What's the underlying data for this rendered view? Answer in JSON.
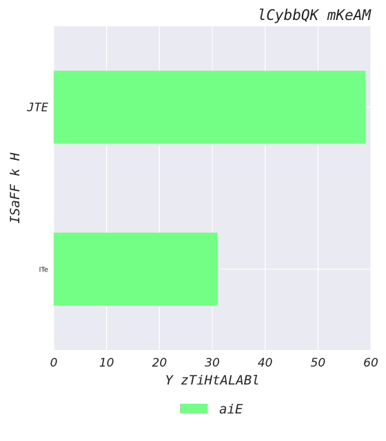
{
  "chart_data": {
    "type": "bar",
    "orientation": "horizontal",
    "title": "lCybbQK mKeAM",
    "xlabel": "Y zTiHtALABl",
    "ylabel": "ISaFF k H",
    "categories": [
      "JTE",
      "ITe"
    ],
    "series": [
      {
        "name": "aiE",
        "values": [
          59,
          31
        ],
        "color": "#73ff85"
      }
    ],
    "xlim": [
      0,
      60
    ],
    "xticks": [
      0,
      10,
      20,
      30,
      40,
      50,
      60
    ],
    "grid": true,
    "legend_position": "bottom-center",
    "background_color": "#eaeaf2"
  }
}
